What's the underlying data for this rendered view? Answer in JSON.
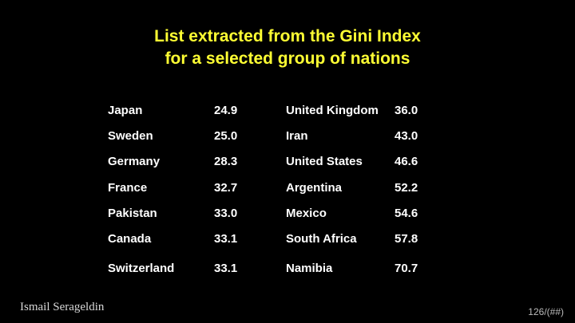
{
  "header": {
    "title": [
      "List extracted from the Gini Index",
      "for a selected group of nations"
    ]
  },
  "table": {
    "rows": [
      [
        "Japan",
        "24.9",
        "United Kingdom",
        "36.0"
      ],
      [
        "Sweden",
        "25.0",
        "Iran",
        "43.0"
      ],
      [
        "Germany",
        "28.3",
        "United States",
        "46.6"
      ],
      [
        "France",
        "32.7",
        "Argentina",
        "52.2"
      ],
      [
        "Pakistan",
        "33.0",
        "Mexico",
        "54.6"
      ],
      [
        "Canada",
        "33.1",
        "South Africa",
        "57.8"
      ],
      [
        "Switzerland",
        "33.1",
        "Namibia",
        "70.7"
      ]
    ]
  },
  "footer": {
    "author": "Ismail Serageldin",
    "page": "126/(##)"
  }
}
